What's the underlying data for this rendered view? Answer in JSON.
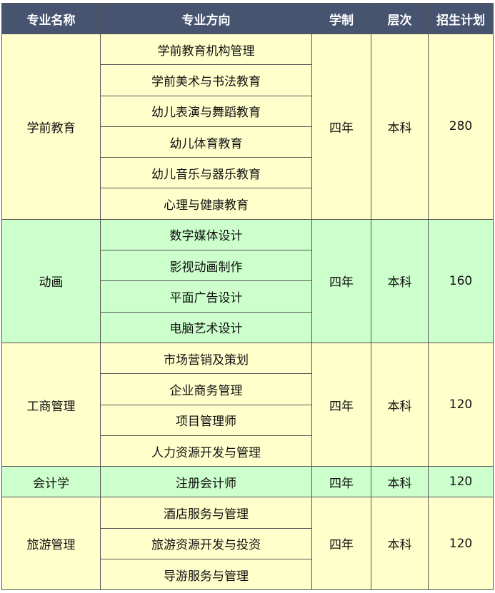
{
  "headers": [
    "专业名称",
    "专业方向",
    "学制",
    "层次",
    "招生计划"
  ],
  "colors": {
    "header": "#465470",
    "yellow": "#ffffcc",
    "green": "#ccffcc",
    "border": "#555555"
  },
  "groups": [
    {
      "name": "学前教育",
      "color": "yellow",
      "duration": "四年",
      "level": "本科",
      "plan": "280",
      "directions": [
        "学前教育机构管理",
        "学前美术与书法教育",
        "幼儿表演与舞蹈教育",
        "幼儿体育教育",
        "幼儿音乐与器乐教育",
        "心理与健康教育"
      ]
    },
    {
      "name": "动画",
      "color": "green",
      "duration": "四年",
      "level": "本科",
      "plan": "160",
      "directions": [
        "数字媒体设计",
        "影视动画制作",
        "平面广告设计",
        "电脑艺术设计"
      ]
    },
    {
      "name": "工商管理",
      "color": "yellow",
      "duration": "四年",
      "level": "本科",
      "plan": "120",
      "directions": [
        "市场营销及策划",
        "企业商务管理",
        "项目管理师",
        "人力资源开发与管理"
      ]
    },
    {
      "name": "会计学",
      "color": "green",
      "duration": "四年",
      "level": "本科",
      "plan": "120",
      "directions": [
        "注册会计师"
      ]
    },
    {
      "name": "旅游管理",
      "color": "yellow",
      "duration": "四年",
      "level": "本科",
      "plan": "120",
      "directions": [
        "酒店服务与管理",
        "旅游资源开发与投资",
        "导游服务与管理"
      ]
    }
  ]
}
